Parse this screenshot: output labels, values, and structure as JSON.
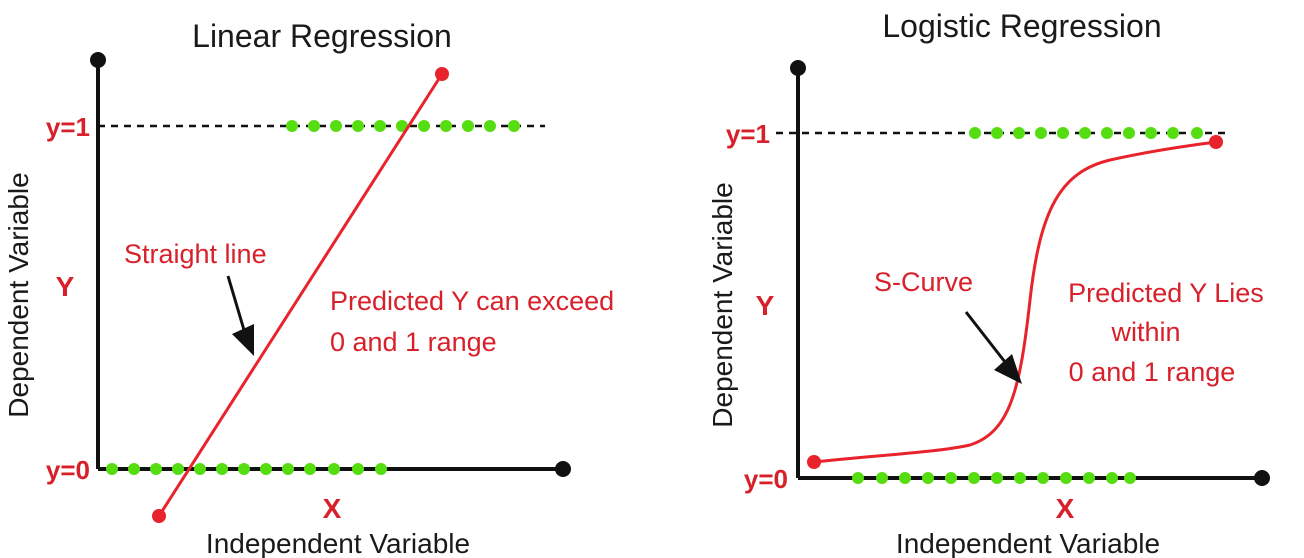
{
  "colors": {
    "axis": "#111111",
    "curve": "#e8232b",
    "data_point": "#55dd11",
    "label": "#d8202a",
    "text": "#1a1a1a"
  },
  "panels": [
    {
      "title": "Linear Regression",
      "y_axis_label": "Dependent Variable",
      "x_axis_label": "Independent Variable",
      "y_letter": "Y",
      "x_letter": "X",
      "tick_y1": "y=1",
      "tick_y0": "y=0",
      "curve_label": "Straight line",
      "note_lines": [
        "Predicted Y can exceed",
        "0 and 1 range"
      ]
    },
    {
      "title": "Logistic Regression",
      "y_axis_label": "Dependent Variable",
      "x_axis_label": "Independent Variable",
      "y_letter": "Y",
      "x_letter": "X",
      "tick_y1": "y=1",
      "tick_y0": "y=0",
      "curve_label": "S-Curve",
      "note_lines": [
        "Predicted Y Lies",
        "within",
        "0 and 1 range"
      ]
    }
  ]
}
